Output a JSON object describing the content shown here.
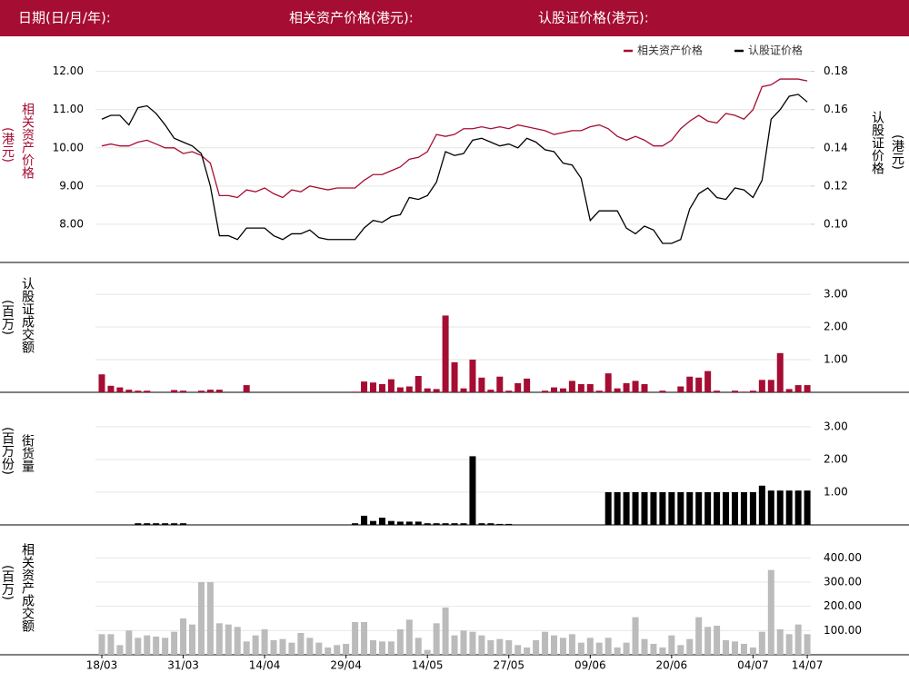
{
  "header": {
    "date_label": "日期(日/月/年):",
    "underlying_label": "相关资产价格(港元):",
    "warrant_label": "认股证价格(港元):"
  },
  "chart_data": [
    {
      "type": "line",
      "y_title": "相关资产价格",
      "y_unit": "(港元)",
      "y2_title": "认股证价格",
      "y2_unit": "(港元)",
      "legend": "top-right",
      "ylim": [
        7.0,
        12.8
      ],
      "yticks": [
        {
          "value": 8,
          "label": "8.00"
        },
        {
          "value": 9,
          "label": "9.00"
        },
        {
          "value": 10,
          "label": "10.00"
        },
        {
          "value": 11,
          "label": "11.00"
        },
        {
          "value": 12,
          "label": "12.00"
        }
      ],
      "y2lim": [
        0.08,
        0.196
      ],
      "y2ticks": [
        {
          "value": 0.1,
          "label": "0.10"
        },
        {
          "value": 0.12,
          "label": "0.12"
        },
        {
          "value": 0.14,
          "label": "0.14"
        },
        {
          "value": 0.16,
          "label": "0.16"
        },
        {
          "value": 0.18,
          "label": "0.18"
        }
      ],
      "grid": true,
      "series": [
        {
          "name": "相关资产价格",
          "color": "#a50d32",
          "axis": "y",
          "values": [
            10.05,
            10.1,
            10.05,
            10.05,
            10.15,
            10.2,
            10.1,
            10.0,
            10.0,
            9.85,
            9.9,
            9.8,
            9.6,
            8.75,
            8.75,
            8.7,
            8.9,
            8.85,
            8.95,
            8.8,
            8.7,
            8.9,
            8.85,
            9.0,
            8.95,
            8.9,
            8.95,
            8.95,
            8.95,
            9.15,
            9.3,
            9.3,
            9.4,
            9.5,
            9.7,
            9.75,
            9.9,
            10.35,
            10.3,
            10.35,
            10.5,
            10.5,
            10.55,
            10.5,
            10.55,
            10.5,
            10.6,
            10.55,
            10.5,
            10.45,
            10.35,
            10.4,
            10.45,
            10.45,
            10.55,
            10.6,
            10.5,
            10.3,
            10.2,
            10.3,
            10.2,
            10.05,
            10.05,
            10.2,
            10.5,
            10.7,
            10.85,
            10.7,
            10.65,
            10.9,
            10.85,
            10.75,
            11.0,
            11.6,
            11.65,
            11.8,
            11.8,
            11.8,
            11.75
          ]
        },
        {
          "name": "认股证价格",
          "color": "#000000",
          "axis": "y2",
          "values": [
            0.155,
            0.157,
            0.157,
            0.152,
            0.161,
            0.162,
            0.158,
            0.152,
            0.145,
            0.143,
            0.141,
            0.137,
            0.12,
            0.094,
            0.094,
            0.092,
            0.098,
            0.098,
            0.098,
            0.094,
            0.092,
            0.095,
            0.095,
            0.097,
            0.093,
            0.092,
            0.092,
            0.092,
            0.092,
            0.098,
            0.102,
            0.101,
            0.104,
            0.105,
            0.114,
            0.113,
            0.115,
            0.122,
            0.138,
            0.136,
            0.137,
            0.144,
            0.145,
            0.143,
            0.141,
            0.142,
            0.14,
            0.145,
            0.143,
            0.139,
            0.138,
            0.132,
            0.131,
            0.124,
            0.102,
            0.107,
            0.107,
            0.107,
            0.098,
            0.095,
            0.099,
            0.097,
            0.09,
            0.09,
            0.092,
            0.108,
            0.116,
            0.119,
            0.114,
            0.113,
            0.119,
            0.118,
            0.114,
            0.123,
            0.155,
            0.16,
            0.167,
            0.168,
            0.164
          ]
        }
      ]
    },
    {
      "type": "bar",
      "y_title": "认股证成交额",
      "y_unit": "(百万)",
      "color": "#a50d32",
      "grid": true,
      "ylim": [
        0,
        3.78
      ],
      "yticks": [
        {
          "value": 1,
          "label": "1.00"
        },
        {
          "value": 2,
          "label": "2.00"
        },
        {
          "value": 3,
          "label": "3.00"
        }
      ],
      "values": [
        0.55,
        0.2,
        0.15,
        0.08,
        0.05,
        0.05,
        0,
        0,
        0.07,
        0.05,
        0,
        0.05,
        0.08,
        0.08,
        0,
        0,
        0.22,
        0,
        0,
        0,
        0,
        0,
        0,
        0,
        0,
        0,
        0,
        0,
        0.02,
        0.33,
        0.3,
        0.25,
        0.4,
        0.15,
        0.18,
        0.5,
        0.12,
        0.1,
        2.35,
        0.92,
        0.12,
        1.0,
        0.45,
        0.08,
        0.48,
        0.05,
        0.28,
        0.42,
        0,
        0.05,
        0.15,
        0.12,
        0.35,
        0.25,
        0.25,
        0.05,
        0.58,
        0.12,
        0.28,
        0.35,
        0.25,
        0,
        0.05,
        0,
        0.18,
        0.48,
        0.45,
        0.65,
        0.05,
        0,
        0.05,
        0.02,
        0.05,
        0.38,
        0.38,
        1.2,
        0.1,
        0.22,
        0.22
      ]
    },
    {
      "type": "bar",
      "y_title": "街货量",
      "y_unit": "(百万份)",
      "color": "#000000",
      "grid": true,
      "ylim": [
        0,
        3.75
      ],
      "yticks": [
        {
          "value": 1,
          "label": "1.00"
        },
        {
          "value": 2,
          "label": "2.00"
        },
        {
          "value": 3,
          "label": "3.00"
        }
      ],
      "values": [
        0,
        0,
        0,
        0,
        0.05,
        0.05,
        0.05,
        0.05,
        0.05,
        0.05,
        0,
        0,
        0,
        0,
        0,
        0,
        0,
        0,
        0,
        0,
        0,
        0,
        0,
        0,
        0,
        0,
        0,
        0,
        0.05,
        0.28,
        0.12,
        0.22,
        0.12,
        0.1,
        0.1,
        0.1,
        0.05,
        0.05,
        0.05,
        0.05,
        0.05,
        2.1,
        0.05,
        0.05,
        0.03,
        0.03,
        0,
        0,
        0,
        0,
        0,
        0,
        0,
        0,
        0,
        0,
        1.0,
        1.0,
        1.0,
        1.0,
        1.0,
        1.0,
        1.0,
        1.0,
        1.0,
        1.0,
        1.0,
        1.0,
        1.0,
        1.0,
        1.0,
        1.0,
        1.0,
        1.2,
        1.05,
        1.05,
        1.05,
        1.05,
        1.05
      ]
    },
    {
      "type": "bar",
      "y_title": "相关资产成交额",
      "y_unit": "(百万)",
      "color": "#bbbbbb",
      "grid": true,
      "ylim": [
        0,
        510
      ],
      "yticks": [
        {
          "value": 100,
          "label": "100.00"
        },
        {
          "value": 200,
          "label": "200.00"
        },
        {
          "value": 300,
          "label": "300.00"
        },
        {
          "value": 400,
          "label": "400.00"
        }
      ],
      "categories": [
        "18/03",
        null,
        null,
        null,
        null,
        null,
        null,
        null,
        null,
        "31/03",
        null,
        null,
        null,
        null,
        null,
        null,
        null,
        null,
        "14/04",
        null,
        null,
        null,
        null,
        null,
        null,
        null,
        null,
        "29/04",
        null,
        null,
        null,
        null,
        null,
        null,
        null,
        null,
        "14/05",
        null,
        null,
        null,
        null,
        null,
        null,
        null,
        null,
        "27/05",
        null,
        null,
        null,
        null,
        null,
        null,
        null,
        null,
        "09/06",
        null,
        null,
        null,
        null,
        null,
        null,
        null,
        null,
        "20/06",
        null,
        null,
        null,
        null,
        null,
        null,
        null,
        null,
        "04/07",
        null,
        null,
        null,
        null,
        null,
        "14/07"
      ],
      "values": [
        85,
        85,
        40,
        100,
        70,
        80,
        75,
        70,
        95,
        150,
        125,
        300,
        300,
        130,
        125,
        115,
        55,
        80,
        105,
        60,
        65,
        50,
        90,
        70,
        50,
        30,
        40,
        45,
        135,
        135,
        60,
        55,
        55,
        105,
        145,
        70,
        20,
        130,
        195,
        80,
        100,
        95,
        80,
        60,
        65,
        60,
        40,
        30,
        60,
        95,
        80,
        70,
        85,
        50,
        70,
        50,
        70,
        30,
        50,
        155,
        65,
        45,
        30,
        80,
        40,
        65,
        155,
        115,
        120,
        60,
        55,
        45,
        30,
        95,
        350,
        105,
        85,
        125,
        85
      ]
    }
  ]
}
